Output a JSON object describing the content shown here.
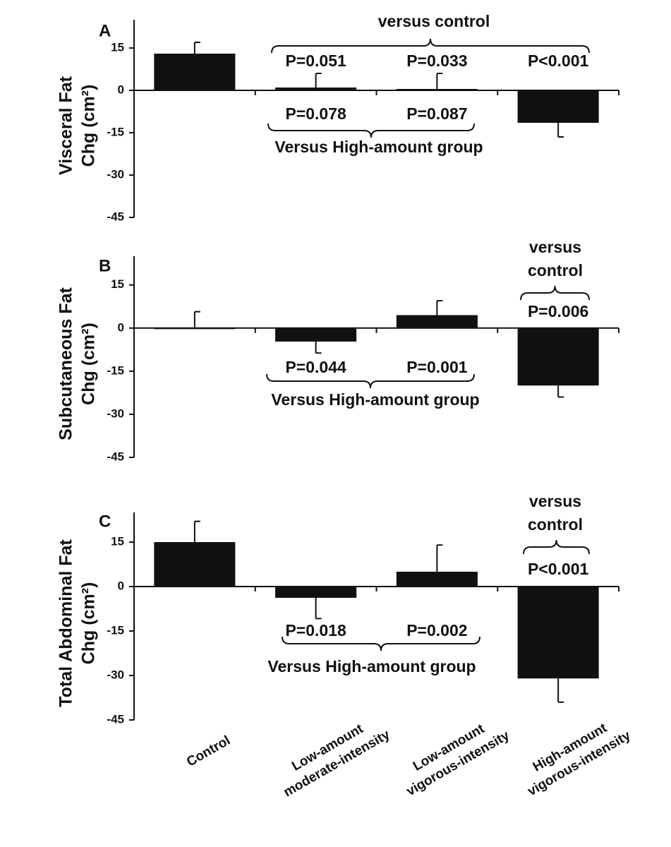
{
  "chart_data": [
    {
      "type": "bar",
      "panel_label": "A",
      "ylabel": [
        "Visceral Fat",
        "Chg (cm²)"
      ],
      "values": [
        13,
        1,
        0.5,
        -11.5
      ],
      "errors": [
        4,
        5,
        5.5,
        5
      ],
      "color": "#111111",
      "ylim": [
        -45,
        25
      ],
      "yticks": [
        15,
        0,
        -15,
        -30,
        -45
      ],
      "comparisons": [
        {
          "label": "versus control",
          "p_values": [
            null,
            "P=0.051",
            "P=0.033",
            "P<0.001"
          ]
        },
        {
          "label": "Versus High-amount group",
          "p_values": [
            null,
            "P=0.078",
            "P=0.087",
            null
          ]
        }
      ]
    },
    {
      "type": "bar",
      "panel_label": "B",
      "ylabel": [
        "Subcutaneous Fat",
        "Chg (cm²)"
      ],
      "values": [
        0,
        -4.7,
        4.5,
        -20
      ],
      "errors": [
        5.7,
        4,
        5,
        4
      ],
      "color": "#111111",
      "ylim": [
        -45,
        25
      ],
      "yticks": [
        15,
        0,
        -15,
        -30,
        -45
      ],
      "comparisons": [
        {
          "label": "versus control",
          "p_values": [
            null,
            null,
            null,
            "P=0.006"
          ]
        },
        {
          "label": "Versus High-amount group",
          "p_values": [
            null,
            "P=0.044",
            "P=0.001",
            null
          ]
        }
      ]
    },
    {
      "type": "bar",
      "panel_label": "C",
      "ylabel": [
        "Total Abdominal Fat",
        "Chg (cm²)"
      ],
      "categories": [
        "Control",
        "Low-amount moderate-intensity",
        "Low-amount vigorous-intensity",
        "High-amount vigorous-intensity"
      ],
      "values": [
        15,
        -3.8,
        5,
        -31
      ],
      "errors": [
        7,
        7,
        9,
        8
      ],
      "color": "#111111",
      "ylim": [
        -45,
        25
      ],
      "yticks": [
        15,
        0,
        -15,
        -30,
        -45
      ],
      "comparisons": [
        {
          "label": "versus control",
          "p_values": [
            null,
            null,
            null,
            "P<0.001"
          ]
        },
        {
          "label": "Versus High-amount group",
          "p_values": [
            null,
            "P=0.018",
            "P=0.002",
            null
          ]
        }
      ]
    }
  ]
}
